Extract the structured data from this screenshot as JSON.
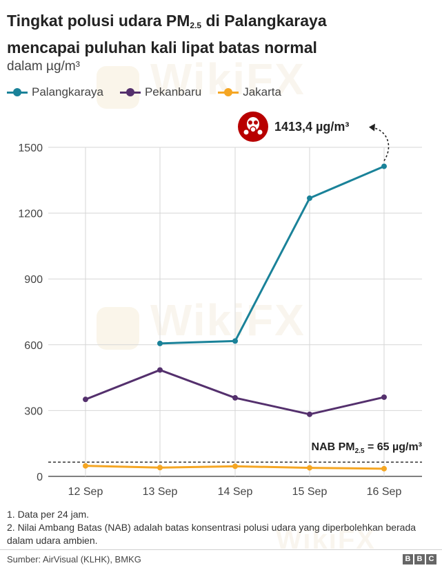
{
  "header": {
    "title_part1": "Tingkat polusi udara PM",
    "title_sub": "2.5",
    "title_part2": " di Palangkaraya",
    "title_line2": "mencapai puluhan kali lipat batas normal",
    "unit": "dalam µg/m³"
  },
  "chart_data": {
    "type": "line",
    "categories": [
      "12 Sep",
      "13 Sep",
      "14 Sep",
      "15 Sep",
      "16 Sep"
    ],
    "ylim": [
      0,
      1500
    ],
    "yticks": [
      "0",
      "300",
      "600",
      "900",
      "1200",
      "1500"
    ],
    "ytick_values": [
      0,
      300,
      600,
      900,
      1200,
      1500
    ],
    "grid": true,
    "legend_placement": "top-left",
    "series": [
      {
        "name": "Palangkaraya",
        "color": "#1a8299",
        "values": [
          null,
          606,
          617,
          1268,
          1413.4
        ]
      },
      {
        "name": "Pekanbaru",
        "color": "#54306d",
        "values": [
          351,
          485,
          358,
          283,
          361
        ]
      },
      {
        "name": "Jakarta",
        "color": "#f5a623",
        "values": [
          48,
          40,
          46,
          39,
          35
        ]
      }
    ],
    "threshold": {
      "value": 65,
      "label_prefix": "NAB PM",
      "label_sub": "2.5",
      "label_suffix": " = 65 µg/m³"
    },
    "peak_annotation": {
      "label": "1413,4 µg/m³",
      "icon": "gas-mask-icon",
      "icon_color": "#b80000"
    }
  },
  "notes": [
    "1. Data per 24 jam.",
    "2. Nilai Ambang Batas (NAB) adalah batas konsentrasi polusi udara yang diperbolehkan berada dalam udara ambien."
  ],
  "footer": {
    "source": "Sumber: AirVisual (KLHK), BMKG",
    "logo_letters": [
      "B",
      "B",
      "C"
    ]
  },
  "watermark_text": "WikiFX"
}
